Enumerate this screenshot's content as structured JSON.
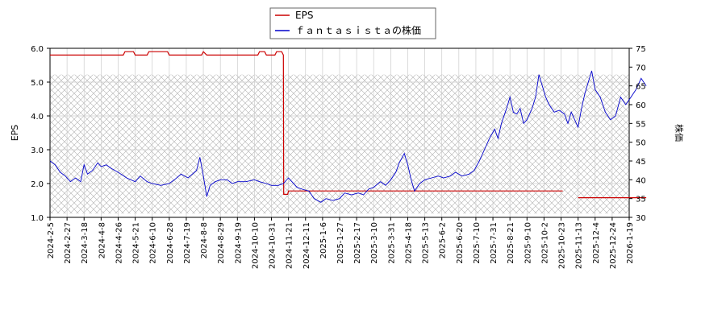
{
  "chart_data": {
    "type": "line",
    "legend": {
      "placement": "top-center",
      "items": [
        {
          "label": "EPS",
          "color": "#cc0000"
        },
        {
          "label": "ｆａｎｔａｓｉｓｔａの株価",
          "color": "#0000cc"
        }
      ]
    },
    "left_axis": {
      "label": "EPS",
      "min": 1.0,
      "max": 6.0,
      "ticks": [
        "1.0",
        "2.0",
        "3.0",
        "4.0",
        "5.0",
        "6.0"
      ]
    },
    "right_axis": {
      "label": "株価",
      "min": 30,
      "max": 75,
      "ticks": [
        "30",
        "35",
        "40",
        "45",
        "50",
        "55",
        "60",
        "65",
        "70",
        "75"
      ]
    },
    "x_ticks": [
      "2024-2-5",
      "2024-2-27",
      "2024-3-18",
      "2024-4-8",
      "2024-4-26",
      "2024-5-21",
      "2024-6-10",
      "2024-6-28",
      "2024-7-19",
      "2024-8-8",
      "2024-8-29",
      "2024-9-19",
      "2024-10-10",
      "2024-10-31",
      "2024-11-21",
      "2024-12-11",
      "2025-1-6",
      "2025-1-27",
      "2025-2-17",
      "2025-3-10",
      "2025-3-31",
      "2025-4-18",
      "2025-5-13",
      "2025-6-2",
      "2025-6-20",
      "2025-7-10",
      "2025-7-31",
      "2025-8-21",
      "2025-9-10",
      "2025-10-2",
      "2025-10-23",
      "2025-11-13",
      "2025-12-4",
      "2025-12-24",
      "2026-1-19"
    ],
    "grid": true,
    "shaded_price_band": [
      31,
      68
    ],
    "series": [
      {
        "name": "EPS",
        "axis": "left",
        "color": "#cc0000",
        "segments": [
          [
            [
              0,
              5.8
            ],
            [
              4.3,
              5.8
            ],
            [
              4.4,
              5.9
            ],
            [
              4.9,
              5.9
            ],
            [
              5.0,
              5.8
            ],
            [
              5.7,
              5.8
            ],
            [
              5.8,
              5.9
            ],
            [
              6.9,
              5.9
            ],
            [
              7.0,
              5.8
            ],
            [
              8.9,
              5.8
            ],
            [
              9.0,
              5.9
            ],
            [
              9.2,
              5.8
            ],
            [
              12.2,
              5.8
            ],
            [
              12.3,
              5.9
            ],
            [
              12.6,
              5.9
            ],
            [
              12.7,
              5.8
            ],
            [
              13.2,
              5.8
            ],
            [
              13.3,
              5.9
            ],
            [
              13.6,
              5.9
            ],
            [
              13.7,
              5.8
            ],
            [
              13.72,
              1.68
            ],
            [
              13.95,
              1.68
            ],
            [
              14.0,
              1.78
            ],
            [
              30.1,
              1.78
            ]
          ],
          [
            [
              31.0,
              1.58
            ],
            [
              35.0,
              1.58
            ]
          ]
        ]
      },
      {
        "name": "ｆａｎｔａｓｉｓｔａの株価",
        "axis": "right",
        "color": "#0000cc",
        "points": [
          [
            0,
            45
          ],
          [
            0.3,
            44
          ],
          [
            0.6,
            42
          ],
          [
            0.9,
            41
          ],
          [
            1.2,
            39.5
          ],
          [
            1.5,
            40.5
          ],
          [
            1.8,
            39.5
          ],
          [
            2.0,
            44
          ],
          [
            2.2,
            41.5
          ],
          [
            2.5,
            42.5
          ],
          [
            2.8,
            44.5
          ],
          [
            3.0,
            43.5
          ],
          [
            3.3,
            44
          ],
          [
            3.6,
            43
          ],
          [
            4.0,
            42
          ],
          [
            4.5,
            40.5
          ],
          [
            5.0,
            39.5
          ],
          [
            5.3,
            41
          ],
          [
            5.7,
            39.5
          ],
          [
            6.0,
            39
          ],
          [
            6.5,
            38.5
          ],
          [
            7.0,
            39
          ],
          [
            7.3,
            40
          ],
          [
            7.7,
            41.5
          ],
          [
            8.1,
            40.5
          ],
          [
            8.6,
            42.5
          ],
          [
            8.8,
            46
          ],
          [
            9.0,
            41
          ],
          [
            9.2,
            35.5
          ],
          [
            9.4,
            38.5
          ],
          [
            9.7,
            39.5
          ],
          [
            10.0,
            40
          ],
          [
            10.4,
            40
          ],
          [
            10.7,
            39
          ],
          [
            11.0,
            39.5
          ],
          [
            11.5,
            39.5
          ],
          [
            12.0,
            40
          ],
          [
            12.3,
            39.5
          ],
          [
            12.7,
            39
          ],
          [
            13.0,
            38.5
          ],
          [
            13.4,
            38.5
          ],
          [
            13.7,
            39
          ],
          [
            14.0,
            40.5
          ],
          [
            14.2,
            39.5
          ],
          [
            14.5,
            38
          ],
          [
            14.8,
            37.5
          ],
          [
            15.2,
            37
          ],
          [
            15.5,
            35
          ],
          [
            15.9,
            34
          ],
          [
            16.2,
            35
          ],
          [
            16.6,
            34.5
          ],
          [
            17.0,
            35
          ],
          [
            17.3,
            36.5
          ],
          [
            17.7,
            36
          ],
          [
            18.1,
            36.5
          ],
          [
            18.4,
            36
          ],
          [
            18.7,
            37.5
          ],
          [
            19.0,
            38
          ],
          [
            19.4,
            39.5
          ],
          [
            19.7,
            38.5
          ],
          [
            20.0,
            40
          ],
          [
            20.3,
            42
          ],
          [
            20.5,
            44.5
          ],
          [
            20.8,
            47
          ],
          [
            21.0,
            44
          ],
          [
            21.2,
            40
          ],
          [
            21.4,
            37
          ],
          [
            21.7,
            39
          ],
          [
            22.0,
            40
          ],
          [
            22.4,
            40.5
          ],
          [
            22.8,
            41
          ],
          [
            23.1,
            40.5
          ],
          [
            23.5,
            41
          ],
          [
            23.8,
            42
          ],
          [
            24.2,
            41
          ],
          [
            24.6,
            41.5
          ],
          [
            24.9,
            42.5
          ],
          [
            25.2,
            45
          ],
          [
            25.5,
            48
          ],
          [
            25.8,
            51
          ],
          [
            26.1,
            53.5
          ],
          [
            26.3,
            51
          ],
          [
            26.5,
            55
          ],
          [
            26.8,
            59
          ],
          [
            27.0,
            62
          ],
          [
            27.2,
            58
          ],
          [
            27.4,
            57.5
          ],
          [
            27.6,
            59
          ],
          [
            27.8,
            55
          ],
          [
            28.0,
            56
          ],
          [
            28.3,
            59
          ],
          [
            28.5,
            62
          ],
          [
            28.7,
            68
          ],
          [
            28.9,
            65
          ],
          [
            29.1,
            62
          ],
          [
            29.3,
            60
          ],
          [
            29.6,
            58
          ],
          [
            29.9,
            58.5
          ],
          [
            30.2,
            57.5
          ],
          [
            30.4,
            55
          ],
          [
            30.6,
            58
          ],
          [
            30.8,
            56
          ],
          [
            31.0,
            54
          ],
          [
            31.2,
            59
          ],
          [
            31.4,
            63
          ],
          [
            31.6,
            66
          ],
          [
            31.8,
            69
          ],
          [
            32.0,
            64
          ],
          [
            32.3,
            62
          ],
          [
            32.6,
            58
          ],
          [
            32.9,
            56
          ],
          [
            33.2,
            57
          ],
          [
            33.5,
            62
          ],
          [
            33.8,
            60
          ],
          [
            34.1,
            62
          ],
          [
            34.4,
            64
          ],
          [
            34.7,
            67
          ],
          [
            35.0,
            65
          ]
        ]
      }
    ]
  }
}
